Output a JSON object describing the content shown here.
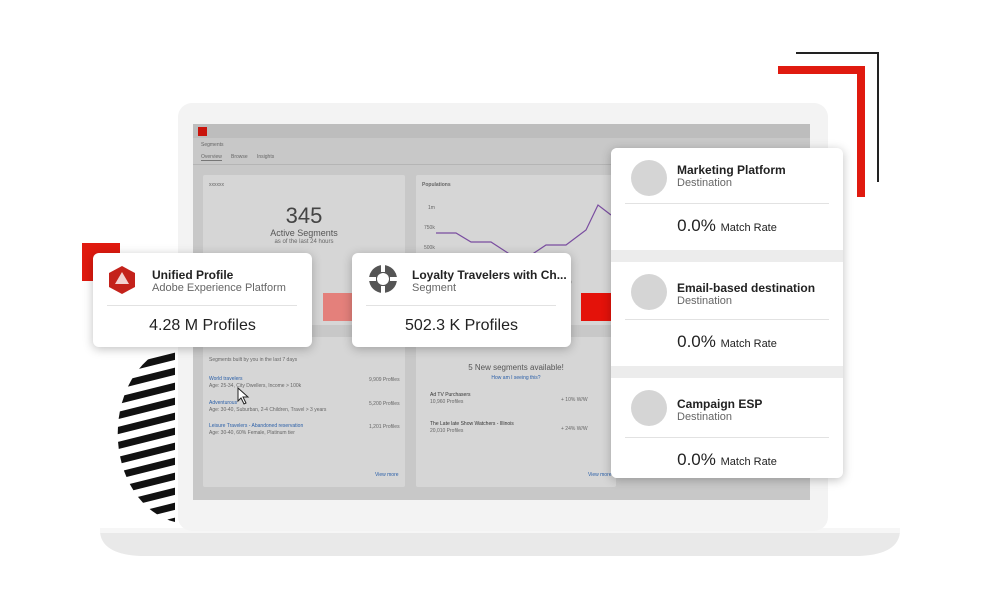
{
  "app": {
    "section": "Segments",
    "tabs": [
      "Overview",
      "Browse",
      "Insights"
    ]
  },
  "summary_card": {
    "title": "xxxxxx",
    "count": 345,
    "label": "Active Segments",
    "note": "as of the last 24 hours"
  },
  "populations": {
    "title": "Populations",
    "y_labels": [
      "1m",
      "750k",
      "500k"
    ],
    "x_label": "20"
  },
  "recent": {
    "caption": "Segments built by you in the last 7 days",
    "items": [
      {
        "name": "World travelers",
        "detail": "Age: 25-34, City Dwellers, Income > 100k",
        "profiles": "9,909 Profiles"
      },
      {
        "name": "Adventurous",
        "detail": "Age: 30-40, Suburban, 2-4 Children, Travel > 3 years",
        "profiles": "5,200 Profiles"
      },
      {
        "name": "Leisure Travelers - Abandoned reservation",
        "detail": "Age: 30-40, 60% Female, Platinum tier",
        "profiles": "1,201 Profiles"
      }
    ],
    "link": "View more"
  },
  "new_segments": {
    "headline": "5 New segments available!",
    "link": "How am I seeing this?",
    "items": [
      {
        "name": "Ad TV Purchasers",
        "profiles": "10,960 Profiles",
        "change": "+ 10% W/W"
      },
      {
        "name": "The Late late Show Watchers - Illinois",
        "profiles": "20,010 Profiles",
        "change": "+ 24% W/W"
      }
    ],
    "link_more": "View more"
  },
  "overlays": {
    "unified": {
      "title": "Unified Profile",
      "subtitle": "Adobe Experience Platform",
      "metric": "4.28 M Profiles"
    },
    "loyalty": {
      "title": "Loyalty Travelers with Ch...",
      "subtitle": "Segment",
      "metric": "502.3 K Profiles"
    }
  },
  "destinations": [
    {
      "name": "Marketing Platform",
      "type": "Destination",
      "rate": "0.0%",
      "rate_label": "Match Rate"
    },
    {
      "name": "Email-based destination",
      "type": "Destination",
      "rate": "0.0%",
      "rate_label": "Match Rate"
    },
    {
      "name": "Campaign ESP",
      "type": "Destination",
      "rate": "0.0%",
      "rate_label": "Match Rate"
    }
  ]
}
